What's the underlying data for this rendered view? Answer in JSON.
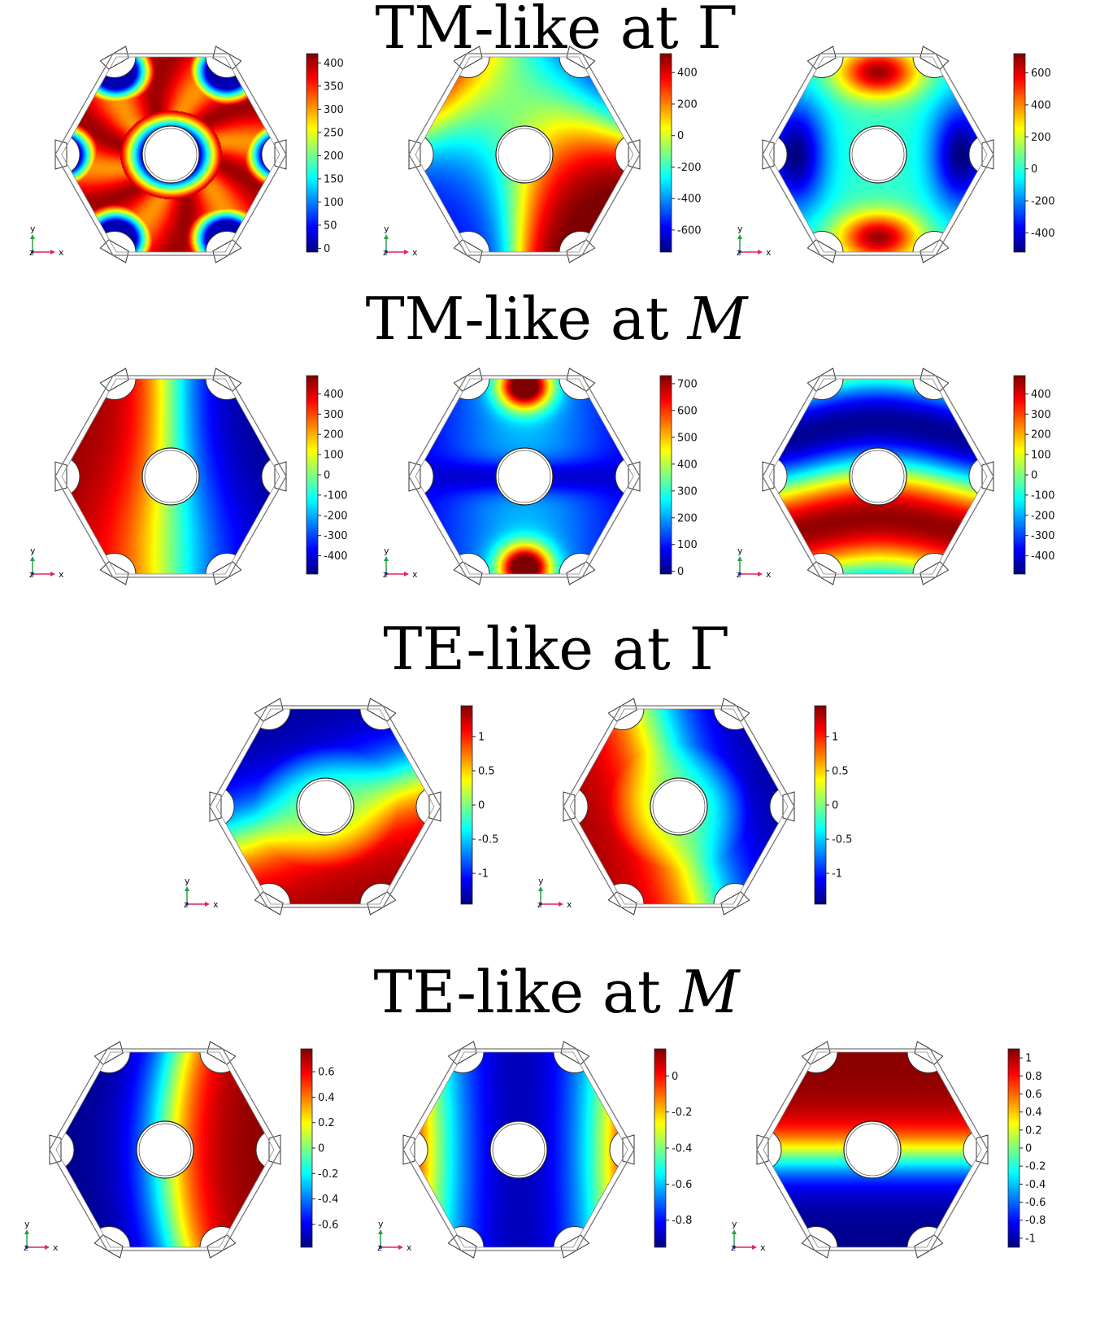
{
  "colormap": [
    "#00007f",
    "#0000ff",
    "#007fff",
    "#00ffff",
    "#7fff7f",
    "#ffff00",
    "#ff7f00",
    "#ff0000",
    "#7f0000"
  ],
  "axes_labels": {
    "x": "x",
    "y": "y",
    "z": "z"
  },
  "axes_colors": {
    "x": "#e0245e",
    "y": "#27a045",
    "z": "#2a4bd7"
  },
  "sections": [
    {
      "title_text": "TM-like at ",
      "title_symbol": "Γ",
      "symbol_italic": false,
      "panels": [
        {
          "field": "ring",
          "colorbar": {
            "min": -8,
            "max": 420,
            "ticks": [
              "400",
              "350",
              "300",
              "250",
              "200",
              "150",
              "100",
              "50",
              "0"
            ],
            "tick_values": [
              400,
              350,
              300,
              250,
              200,
              150,
              100,
              50,
              0
            ]
          }
        },
        {
          "field": "quad_a",
          "colorbar": {
            "min": -740,
            "max": 520,
            "ticks": [
              "400",
              "200",
              "0",
              "-200",
              "-400",
              "-600"
            ],
            "tick_values": [
              400,
              200,
              0,
              -200,
              -400,
              -600
            ]
          }
        },
        {
          "field": "top_bottom",
          "colorbar": {
            "min": -520,
            "max": 720,
            "ticks": [
              "600",
              "400",
              "200",
              "0",
              "-200",
              "-400"
            ],
            "tick_values": [
              600,
              400,
              200,
              0,
              -200,
              -400
            ]
          }
        }
      ]
    },
    {
      "title_text": "TM-like at ",
      "title_symbol": "M",
      "symbol_italic": true,
      "panels": [
        {
          "field": "left_right",
          "colorbar": {
            "min": -490,
            "max": 490,
            "ticks": [
              "400",
              "300",
              "200",
              "100",
              "0",
              "-100",
              "-200",
              "-300",
              "-400"
            ],
            "tick_values": [
              400,
              300,
              200,
              100,
              0,
              -100,
              -200,
              -300,
              -400
            ]
          }
        },
        {
          "field": "top_bottom_pos",
          "colorbar": {
            "min": -10,
            "max": 730,
            "ticks": [
              "700",
              "600",
              "500",
              "400",
              "300",
              "200",
              "100",
              "0"
            ],
            "tick_values": [
              700,
              600,
              500,
              400,
              300,
              200,
              100,
              0
            ]
          }
        },
        {
          "field": "band_h",
          "colorbar": {
            "min": -490,
            "max": 490,
            "ticks": [
              "400",
              "300",
              "200",
              "100",
              "0",
              "-100",
              "-200",
              "-300",
              "-400"
            ],
            "tick_values": [
              400,
              300,
              200,
              100,
              0,
              -100,
              -200,
              -300,
              -400
            ]
          }
        }
      ]
    },
    {
      "title_text": "TE-like at ",
      "title_symbol": "Γ",
      "symbol_italic": false,
      "panels": [
        {
          "field": "te_diag_a",
          "colorbar": {
            "min": -1.45,
            "max": 1.45,
            "ticks": [
              "1",
              "0.5",
              "0",
              "-0.5",
              "-1"
            ],
            "tick_values": [
              1,
              0.5,
              0,
              -0.5,
              -1
            ]
          }
        },
        {
          "field": "te_diag_b",
          "colorbar": {
            "min": -1.45,
            "max": 1.45,
            "ticks": [
              "1",
              "0.5",
              "0",
              "-0.5",
              "-1"
            ],
            "tick_values": [
              1,
              0.5,
              0,
              -0.5,
              -1
            ]
          }
        }
      ]
    },
    {
      "title_text": "TE-like at ",
      "title_symbol": "M",
      "symbol_italic": true,
      "panels": [
        {
          "field": "te_lr",
          "colorbar": {
            "min": -0.78,
            "max": 0.78,
            "ticks": [
              "0.6",
              "0.4",
              "0.2",
              "0",
              "-0.2",
              "-0.4",
              "-0.6"
            ],
            "tick_values": [
              0.6,
              0.4,
              0.2,
              0,
              -0.2,
              -0.4,
              -0.6
            ]
          }
        },
        {
          "field": "te_center_neg",
          "colorbar": {
            "min": -0.95,
            "max": 0.15,
            "ticks": [
              "0",
              "-0.2",
              "-0.4",
              "-0.6",
              "-0.8"
            ],
            "tick_values": [
              0,
              -0.2,
              -0.4,
              -0.6,
              -0.8
            ]
          }
        },
        {
          "field": "te_tb",
          "colorbar": {
            "min": -1.1,
            "max": 1.1,
            "ticks": [
              "1",
              "0.8",
              "0.6",
              "0.4",
              "0.2",
              "0",
              "-0.2",
              "-0.4",
              "-0.6",
              "-0.8",
              "-1"
            ],
            "tick_values": [
              1,
              0.8,
              0.6,
              0.4,
              0.2,
              0,
              -0.2,
              -0.4,
              -0.6,
              -0.8,
              -1
            ]
          }
        }
      ]
    }
  ]
}
